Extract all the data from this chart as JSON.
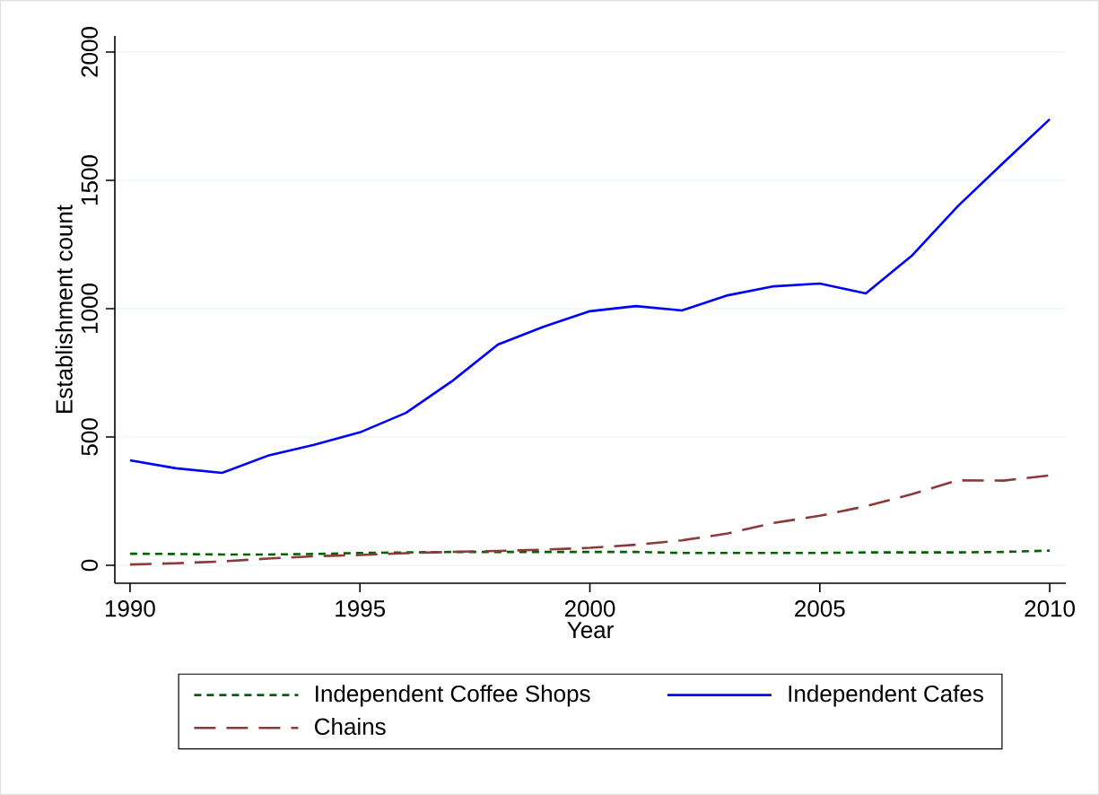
{
  "chart_data": {
    "type": "line",
    "xlabel": "Year",
    "ylabel": "Establishment count",
    "x": [
      1990,
      1991,
      1992,
      1993,
      1994,
      1995,
      1996,
      1997,
      1998,
      1999,
      2000,
      2001,
      2002,
      2003,
      2004,
      2005,
      2006,
      2007,
      2008,
      2009,
      2010
    ],
    "series": [
      {
        "name": "Independent Coffee Shops",
        "color": "#006400",
        "line_style": "dotted",
        "values": [
          45,
          44,
          42,
          42,
          44,
          48,
          50,
          52,
          52,
          52,
          52,
          52,
          48,
          48,
          48,
          48,
          50,
          50,
          50,
          52,
          57
        ]
      },
      {
        "name": "Independent Cafes",
        "color": "#0000ff",
        "line_style": "solid",
        "values": [
          409,
          378,
          360,
          427,
          469,
          518,
          594,
          717,
          860,
          930,
          990,
          1010,
          993,
          1052,
          1087,
          1098,
          1059,
          1206,
          1399,
          1570,
          1738
        ]
      },
      {
        "name": "Chains",
        "color": "#8b3a3a",
        "line_style": "dashed",
        "values": [
          3,
          8,
          15,
          26,
          35,
          40,
          47,
          52,
          56,
          61,
          68,
          80,
          97,
          124,
          165,
          193,
          230,
          277,
          331,
          330,
          350
        ]
      }
    ],
    "xlim": [
      1989.67,
      2010.35
    ],
    "ylim": [
      -70,
      2063
    ],
    "xticks": [
      1990,
      1995,
      2000,
      2005,
      2010
    ],
    "yticks": [
      0,
      500,
      1000,
      1500,
      2000
    ],
    "grid": "y",
    "legend": "bottom",
    "marker": "none"
  }
}
